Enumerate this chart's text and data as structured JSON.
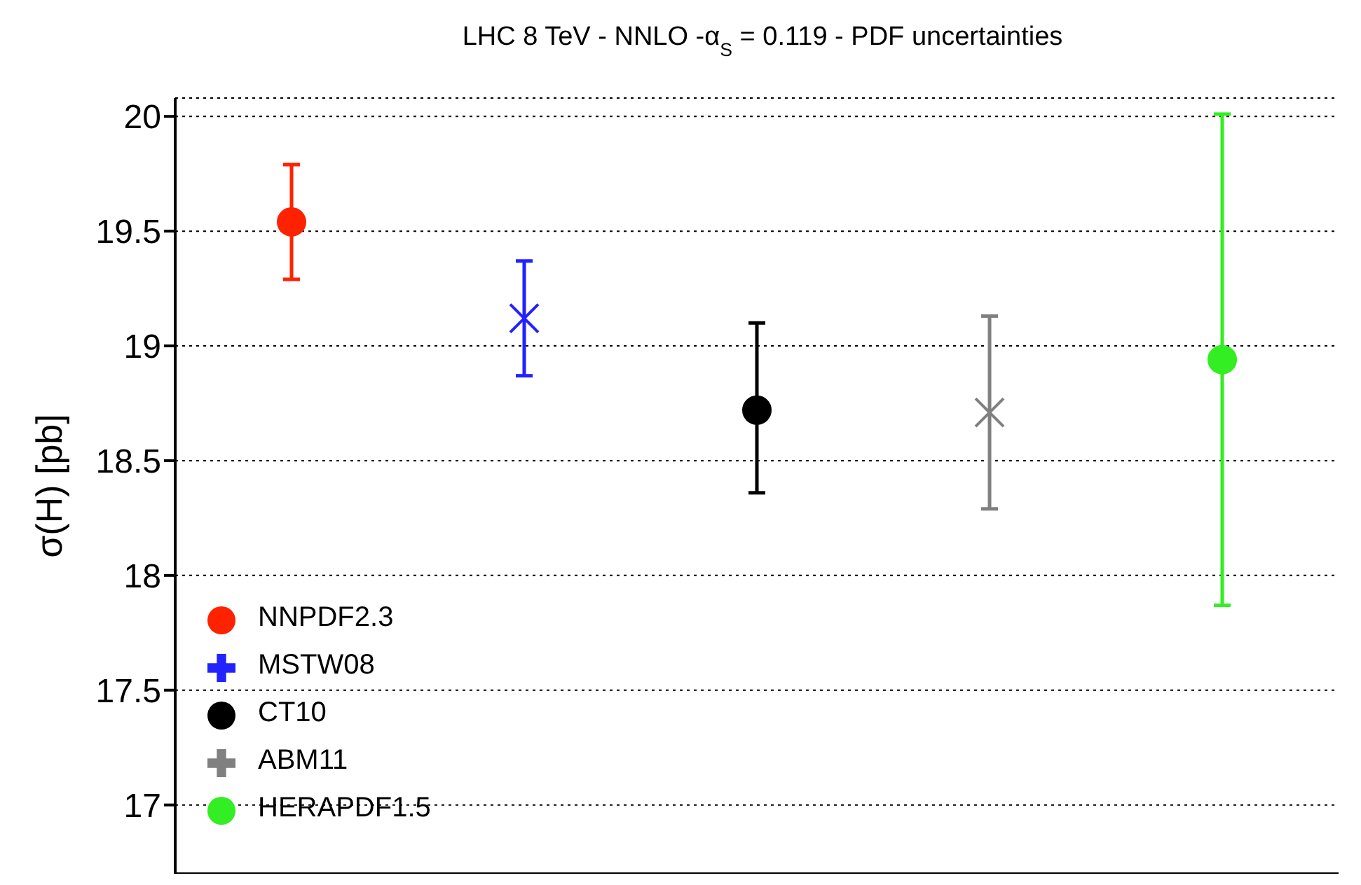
{
  "chart_data": {
    "type": "scatter",
    "title": "LHC 8 TeV - NNLO -α$_{S}$ = 0.119 - PDF uncertainties",
    "ylabel": "σ(H) [pb]",
    "categories": [
      null,
      null,
      null,
      null,
      null
    ],
    "ylim": [
      16.7,
      20.08
    ],
    "yticks": [
      17,
      17.5,
      18,
      18.5,
      19,
      19.5,
      20
    ],
    "grid": "y",
    "legend": "bottom left",
    "tick_labels": "y",
    "series": [
      {
        "name": "NNPDF2.3",
        "color": "#ff2200",
        "marker": "circle",
        "values": [
          19.54,
          null,
          null,
          null,
          null
        ],
        "errors": [
          [
            19.29,
            19.79
          ],
          null,
          null,
          null,
          null
        ]
      },
      {
        "name": "MSTW08",
        "color": "#2222ff",
        "marker": "cross",
        "values": [
          null,
          19.12,
          null,
          null,
          null
        ],
        "errors": [
          null,
          [
            18.87,
            19.37
          ],
          null,
          null,
          null
        ]
      },
      {
        "name": "CT10",
        "color": "#000000",
        "marker": "circle",
        "values": [
          null,
          null,
          18.72,
          null,
          null
        ],
        "errors": [
          null,
          null,
          [
            18.36,
            19.1
          ],
          null,
          null
        ]
      },
      {
        "name": "ABM11",
        "color": "#808080",
        "marker": "cross",
        "values": [
          null,
          null,
          null,
          18.71,
          null
        ],
        "errors": [
          null,
          null,
          null,
          [
            18.29,
            19.13
          ],
          null
        ]
      },
      {
        "name": "HERAPDF1.5",
        "color": "#33ee22",
        "marker": "circle",
        "values": [
          null,
          null,
          null,
          null,
          18.94
        ],
        "errors": [
          null,
          null,
          null,
          null,
          [
            17.87,
            20.01
          ]
        ]
      }
    ]
  }
}
